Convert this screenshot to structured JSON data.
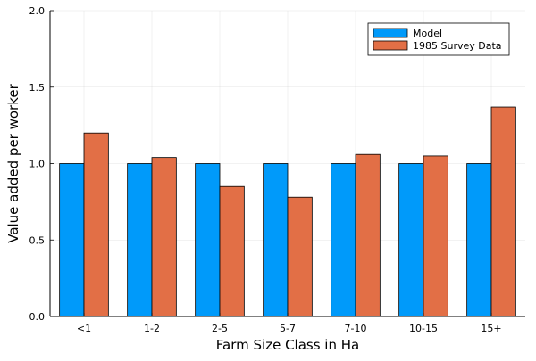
{
  "chart_data": {
    "type": "bar",
    "title": "",
    "xlabel": "Farm Size Class in Ha",
    "ylabel": "Value added per worker",
    "categories": [
      "<1",
      "1-2",
      "2-5",
      "5-7",
      "7-10",
      "10-15",
      "15+"
    ],
    "series": [
      {
        "name": "Model",
        "color": "#009AFA",
        "values": [
          1.0,
          1.0,
          1.0,
          1.0,
          1.0,
          1.0,
          1.0
        ]
      },
      {
        "name": "1985 Survey Data",
        "color": "#E26F46",
        "values": [
          1.2,
          1.04,
          0.85,
          0.78,
          1.06,
          1.05,
          1.37
        ]
      }
    ],
    "ylim": [
      0,
      2
    ],
    "yticks": [
      0.0,
      0.5,
      1.0,
      1.5,
      2.0
    ],
    "ytick_labels": [
      "0.0",
      "0.5",
      "1.0",
      "1.5",
      "2.0"
    ],
    "grid": true,
    "legend_position": "top-right"
  }
}
